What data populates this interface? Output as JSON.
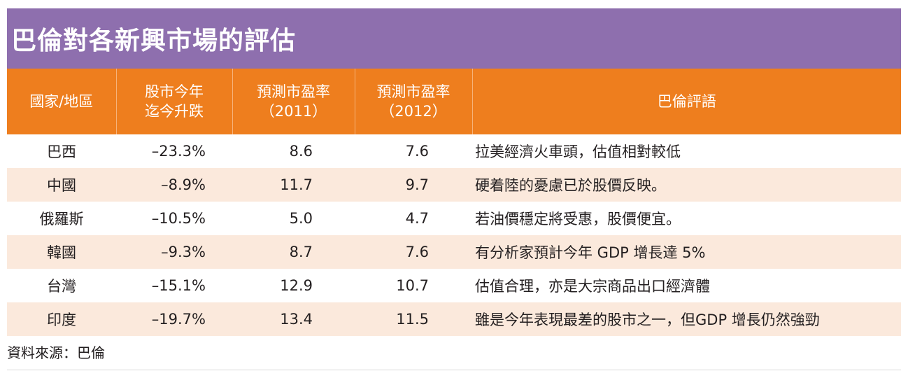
{
  "title": "巴倫對各新興市場的評估",
  "headers": {
    "country": "國家/地區",
    "ytd_line1": "股市今年",
    "ytd_line2": "迄今升跌",
    "pe2011_line1": "預測市盈率",
    "pe2011_line2": "（2011）",
    "pe2012_line1": "預測市盈率",
    "pe2012_line2": "（2012）",
    "comment": "巴倫評語"
  },
  "rows": [
    {
      "country": "巴西",
      "change": "–23.3%",
      "pe2011": "8.6",
      "pe2012": "7.6",
      "comment": "拉美經濟火車頭，估值相對較低"
    },
    {
      "country": "中國",
      "change": "–8.9%",
      "pe2011": "11.7",
      "pe2012": "9.7",
      "comment": "硬着陸的憂慮已於股價反映。"
    },
    {
      "country": "俄羅斯",
      "change": "–10.5%",
      "pe2011": "5.0",
      "pe2012": "4.7",
      "comment": "若油價穩定將受惠，股價便宜。"
    },
    {
      "country": "韓國",
      "change": "–9.3%",
      "pe2011": "8.7",
      "pe2012": "7.6",
      "comment": "有分析家預計今年 GDP 增長達 5%"
    },
    {
      "country": "台灣",
      "change": "–15.1%",
      "pe2011": "12.9",
      "pe2012": "10.7",
      "comment": "估值合理，亦是大宗商品出口經濟體"
    },
    {
      "country": "印度",
      "change": "–19.7%",
      "pe2011": "13.4",
      "pe2012": "11.5",
      "comment": "雖是今年表現最差的股市之一，但GDP 增長仍然強勁"
    }
  ],
  "source": "資料來源：巴倫",
  "colors": {
    "title_bg": "#8e6fae",
    "header_bg": "#ee7e1e",
    "row_shade": "#fbe9dc"
  }
}
